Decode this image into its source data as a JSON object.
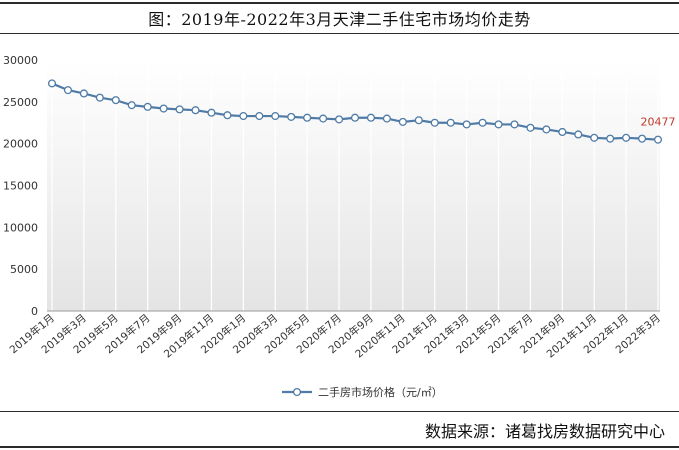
{
  "title": "图：2019年-2022年3月天津二手住宅市场均价走势",
  "source": "数据来源：诸葛找房数据研究中心",
  "chart_data": {
    "type": "line",
    "title": "图：2019年-2022年3月天津二手住宅市场均价走势",
    "xlabel": "",
    "ylabel": "",
    "ylim": [
      0,
      30000
    ],
    "yticks": [
      0,
      5000,
      10000,
      15000,
      20000,
      25000,
      30000
    ],
    "grid": "vertical",
    "legend_position": "bottom",
    "colors": {
      "line": "#4f7ba6",
      "marker_fill": "#ffffff",
      "annotation": "#c0392b",
      "plot_bg_top": "#ffffff",
      "plot_bg_bottom": "#e4e4e4"
    },
    "categories": [
      "2019年1月",
      "2019年2月",
      "2019年3月",
      "2019年4月",
      "2019年5月",
      "2019年6月",
      "2019年7月",
      "2019年8月",
      "2019年9月",
      "2019年10月",
      "2019年11月",
      "2019年12月",
      "2020年1月",
      "2020年2月",
      "2020年3月",
      "2020年4月",
      "2020年5月",
      "2020年6月",
      "2020年7月",
      "2020年8月",
      "2020年9月",
      "2020年10月",
      "2020年11月",
      "2020年12月",
      "2021年1月",
      "2021年2月",
      "2021年3月",
      "2021年4月",
      "2021年5月",
      "2021年6月",
      "2021年7月",
      "2021年8月",
      "2021年9月",
      "2021年10月",
      "2021年11月",
      "2021年12月",
      "2022年1月",
      "2022年2月",
      "2022年3月"
    ],
    "tick_labels": [
      "2019年1月",
      "2019年3月",
      "2019年5月",
      "2019年7月",
      "2019年9月",
      "2019年11月",
      "2020年1月",
      "2020年3月",
      "2020年5月",
      "2020年7月",
      "2020年9月",
      "2020年11月",
      "2021年1月",
      "2021年3月",
      "2021年5月",
      "2021年7月",
      "2021年9月",
      "2021年11月",
      "2022年1月",
      "2022年3月"
    ],
    "series": [
      {
        "name": "二手房市场价格（元/㎡）",
        "values": [
          27200,
          26400,
          26000,
          25500,
          25200,
          24600,
          24400,
          24200,
          24100,
          24000,
          23700,
          23400,
          23300,
          23300,
          23300,
          23200,
          23100,
          23000,
          22900,
          23100,
          23100,
          23000,
          22600,
          22800,
          22500,
          22500,
          22300,
          22500,
          22300,
          22300,
          21900,
          21700,
          21400,
          21100,
          20700,
          20600,
          20700,
          20600,
          20477
        ]
      }
    ],
    "annotations": [
      {
        "category": "2022年3月",
        "text": "20477"
      }
    ]
  }
}
